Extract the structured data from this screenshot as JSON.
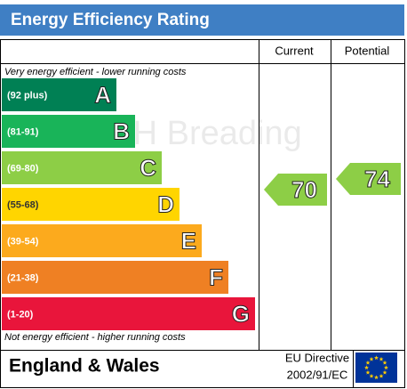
{
  "title": "Energy Efficiency Rating",
  "columns": [
    "Current",
    "Potential"
  ],
  "top_note": "Very energy efficient - lower running costs",
  "bottom_note": "Not energy efficient - higher running costs",
  "watermark": "VH Breading",
  "bands": [
    {
      "range": "(92 plus)",
      "letter": "A",
      "color": "#008054"
    },
    {
      "range": "(81-91)",
      "letter": "B",
      "color": "#19b459"
    },
    {
      "range": "(69-80)",
      "letter": "C",
      "color": "#8dce46"
    },
    {
      "range": "(55-68)",
      "letter": "D",
      "color": "#ffd500"
    },
    {
      "range": "(39-54)",
      "letter": "E",
      "color": "#fcaa1d"
    },
    {
      "range": "(21-38)",
      "letter": "F",
      "color": "#ef8023"
    },
    {
      "range": "(1-20)",
      "letter": "G",
      "color": "#e9153b"
    }
  ],
  "current": {
    "value": 70,
    "color": "#8dce46"
  },
  "potential": {
    "value": 74,
    "color": "#8dce46"
  },
  "footer": {
    "region": "England & Wales",
    "directive": [
      "EU Directive",
      "2002/91/EC"
    ]
  }
}
